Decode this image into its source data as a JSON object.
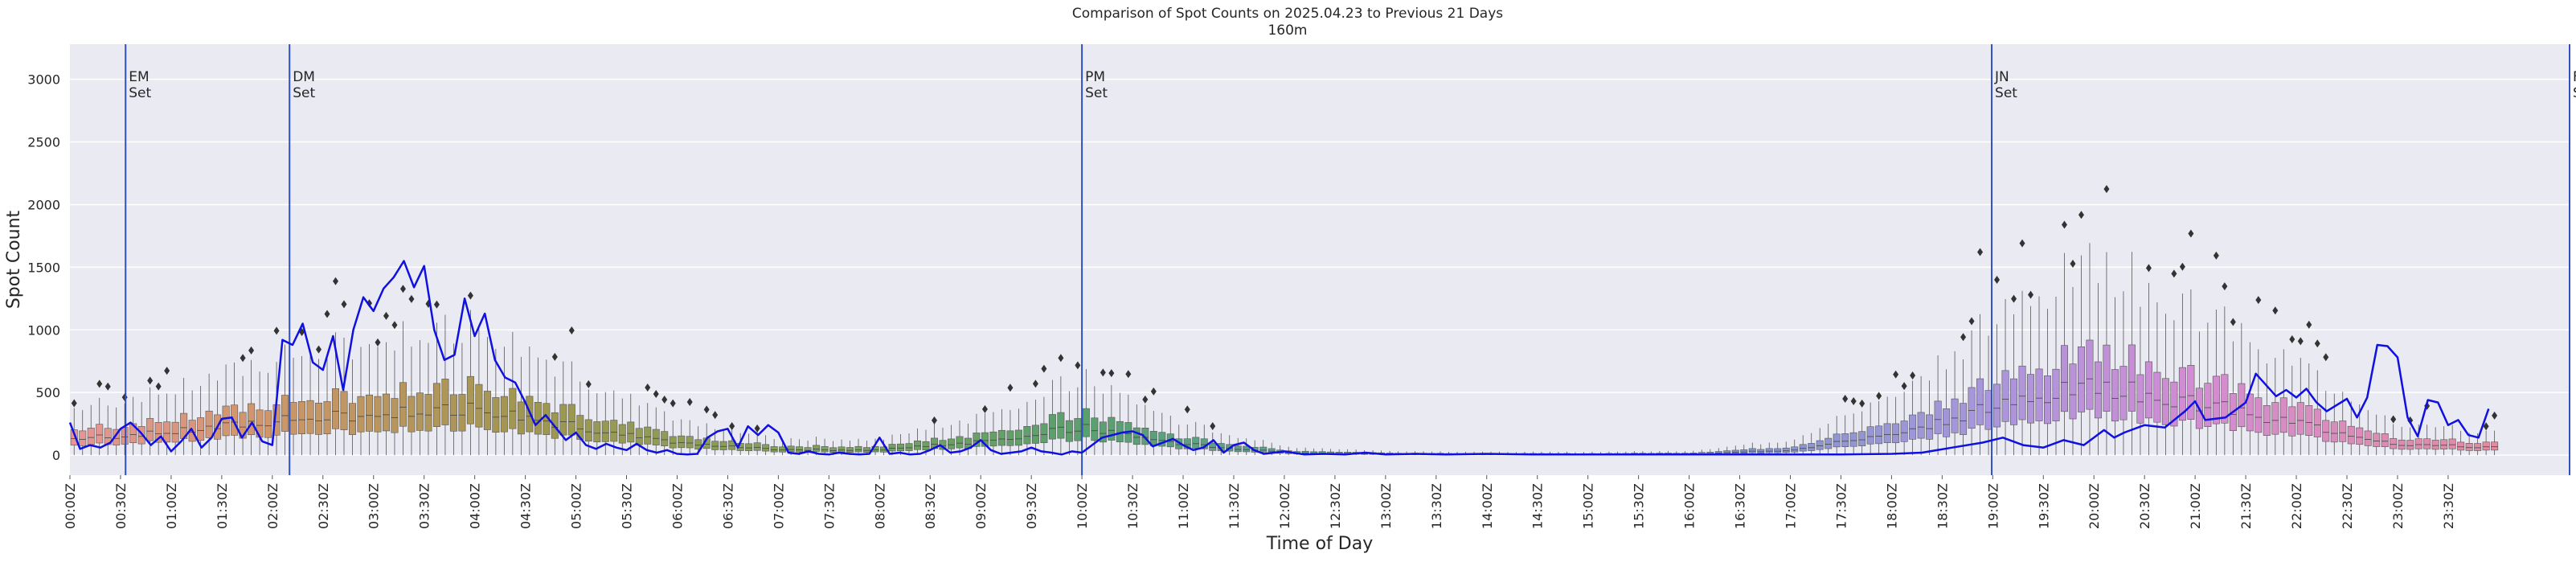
{
  "chart_data": {
    "type": "box",
    "title": "Comparison of Spot Counts on 2025.04.23 to Previous 21 Days",
    "subtitle": "160m",
    "xlabel": "Time of Day",
    "ylabel": "Spot Count",
    "ylim": [
      -160,
      3280
    ],
    "yticks": [
      0,
      500,
      1000,
      1500,
      2000,
      2500,
      3000
    ],
    "grid": true,
    "xticks": [
      "00:00Z",
      "00:30Z",
      "01:00Z",
      "01:30Z",
      "02:00Z",
      "02:30Z",
      "03:00Z",
      "03:30Z",
      "04:00Z",
      "04:30Z",
      "05:00Z",
      "05:30Z",
      "06:00Z",
      "06:30Z",
      "07:00Z",
      "07:30Z",
      "08:00Z",
      "08:30Z",
      "09:00Z",
      "09:30Z",
      "10:00Z",
      "10:30Z",
      "11:00Z",
      "11:30Z",
      "12:00Z",
      "12:30Z",
      "13:00Z",
      "13:30Z",
      "14:00Z",
      "14:30Z",
      "15:00Z",
      "15:30Z",
      "16:00Z",
      "16:30Z",
      "17:00Z",
      "17:30Z",
      "18:00Z",
      "18:30Z",
      "19:00Z",
      "19:30Z",
      "20:00Z",
      "20:30Z",
      "21:00Z",
      "21:30Z",
      "22:00Z",
      "22:30Z",
      "23:00Z",
      "23:30Z"
    ],
    "bins_per_hour": 12,
    "markers": [
      {
        "label": "EM\nSet",
        "time_hours": 0.55,
        "color": "#3050c0"
      },
      {
        "label": "DM\nSet",
        "time_hours": 2.17,
        "color": "#3050c0"
      },
      {
        "label": "PM\nSet",
        "time_hours": 10.0,
        "color": "#3050c0"
      },
      {
        "label": "JN\nSet",
        "time_hours": 18.99,
        "color": "#3050c0"
      },
      {
        "label": "FN\nSet",
        "time_hours": 24.7,
        "color": "#3050c0"
      }
    ],
    "box_medians_hourly": [
      {
        "time_hours": 0,
        "median": 130
      },
      {
        "time_hours": 1,
        "median": 180
      },
      {
        "time_hours": 2,
        "median": 270
      },
      {
        "time_hours": 3,
        "median": 330
      },
      {
        "time_hours": 4,
        "median": 380
      },
      {
        "time_hours": 5,
        "median": 230
      },
      {
        "time_hours": 6,
        "median": 90
      },
      {
        "time_hours": 7,
        "median": 45
      },
      {
        "time_hours": 8,
        "median": 40
      },
      {
        "time_hours": 9,
        "median": 110
      },
      {
        "time_hours": 10,
        "median": 220
      },
      {
        "time_hours": 11,
        "median": 90
      },
      {
        "time_hours": 12,
        "median": 20
      },
      {
        "time_hours": 13,
        "median": 8
      },
      {
        "time_hours": 14,
        "median": 5
      },
      {
        "time_hours": 15,
        "median": 5
      },
      {
        "time_hours": 16,
        "median": 8
      },
      {
        "time_hours": 17,
        "median": 40
      },
      {
        "time_hours": 18,
        "median": 170
      },
      {
        "time_hours": 19,
        "median": 380
      },
      {
        "time_hours": 20,
        "median": 560
      },
      {
        "time_hours": 21,
        "median": 420
      },
      {
        "time_hours": 22,
        "median": 260
      },
      {
        "time_hours": 23,
        "median": 90
      },
      {
        "time_hours": 24,
        "median": 60
      }
    ],
    "series": [
      {
        "name": "",
        "color": "#1010e0",
        "points": [
          [
            0.0,
            260
          ],
          [
            0.1,
            50
          ],
          [
            0.2,
            80
          ],
          [
            0.3,
            60
          ],
          [
            0.4,
            100
          ],
          [
            0.5,
            210
          ],
          [
            0.6,
            260
          ],
          [
            0.7,
            180
          ],
          [
            0.8,
            80
          ],
          [
            0.9,
            150
          ],
          [
            1.0,
            30
          ],
          [
            1.1,
            110
          ],
          [
            1.2,
            210
          ],
          [
            1.3,
            60
          ],
          [
            1.4,
            140
          ],
          [
            1.5,
            290
          ],
          [
            1.6,
            300
          ],
          [
            1.7,
            140
          ],
          [
            1.8,
            260
          ],
          [
            1.9,
            110
          ],
          [
            2.0,
            80
          ],
          [
            2.1,
            920
          ],
          [
            2.2,
            880
          ],
          [
            2.3,
            1050
          ],
          [
            2.4,
            740
          ],
          [
            2.5,
            680
          ],
          [
            2.6,
            950
          ],
          [
            2.7,
            520
          ],
          [
            2.8,
            1000
          ],
          [
            2.9,
            1260
          ],
          [
            3.0,
            1150
          ],
          [
            3.1,
            1330
          ],
          [
            3.2,
            1420
          ],
          [
            3.3,
            1550
          ],
          [
            3.4,
            1340
          ],
          [
            3.5,
            1510
          ],
          [
            3.6,
            1000
          ],
          [
            3.7,
            760
          ],
          [
            3.8,
            800
          ],
          [
            3.9,
            1250
          ],
          [
            4.0,
            950
          ],
          [
            4.1,
            1130
          ],
          [
            4.2,
            760
          ],
          [
            4.3,
            620
          ],
          [
            4.4,
            580
          ],
          [
            4.5,
            420
          ],
          [
            4.6,
            240
          ],
          [
            4.7,
            320
          ],
          [
            4.8,
            220
          ],
          [
            4.9,
            120
          ],
          [
            5.0,
            180
          ],
          [
            5.1,
            80
          ],
          [
            5.2,
            50
          ],
          [
            5.3,
            90
          ],
          [
            5.4,
            60
          ],
          [
            5.5,
            40
          ],
          [
            5.6,
            90
          ],
          [
            5.7,
            40
          ],
          [
            5.8,
            20
          ],
          [
            5.9,
            40
          ],
          [
            6.0,
            10
          ],
          [
            6.1,
            5
          ],
          [
            6.2,
            10
          ],
          [
            6.3,
            140
          ],
          [
            6.4,
            190
          ],
          [
            6.5,
            210
          ],
          [
            6.6,
            60
          ],
          [
            6.7,
            230
          ],
          [
            6.8,
            160
          ],
          [
            6.9,
            240
          ],
          [
            7.0,
            180
          ],
          [
            7.1,
            20
          ],
          [
            7.2,
            10
          ],
          [
            7.3,
            30
          ],
          [
            7.4,
            10
          ],
          [
            7.5,
            5
          ],
          [
            7.6,
            20
          ],
          [
            7.7,
            10
          ],
          [
            7.8,
            5
          ],
          [
            7.9,
            10
          ],
          [
            8.0,
            140
          ],
          [
            8.1,
            10
          ],
          [
            8.2,
            20
          ],
          [
            8.3,
            5
          ],
          [
            8.4,
            10
          ],
          [
            8.5,
            40
          ],
          [
            8.6,
            80
          ],
          [
            8.7,
            20
          ],
          [
            8.8,
            30
          ],
          [
            8.9,
            60
          ],
          [
            9.0,
            120
          ],
          [
            9.1,
            40
          ],
          [
            9.2,
            10
          ],
          [
            9.3,
            20
          ],
          [
            9.4,
            30
          ],
          [
            9.5,
            60
          ],
          [
            9.6,
            30
          ],
          [
            9.7,
            20
          ],
          [
            9.8,
            5
          ],
          [
            9.9,
            30
          ],
          [
            10.0,
            20
          ],
          [
            10.2,
            140
          ],
          [
            10.4,
            180
          ],
          [
            10.5,
            190
          ],
          [
            10.6,
            160
          ],
          [
            10.7,
            70
          ],
          [
            10.9,
            130
          ],
          [
            11.0,
            80
          ],
          [
            11.1,
            40
          ],
          [
            11.2,
            60
          ],
          [
            11.3,
            120
          ],
          [
            11.4,
            20
          ],
          [
            11.5,
            80
          ],
          [
            11.6,
            100
          ],
          [
            11.7,
            40
          ],
          [
            11.8,
            10
          ],
          [
            11.9,
            20
          ],
          [
            12.0,
            30
          ],
          [
            12.2,
            5
          ],
          [
            12.4,
            10
          ],
          [
            12.6,
            5
          ],
          [
            12.8,
            20
          ],
          [
            13.0,
            5
          ],
          [
            13.3,
            10
          ],
          [
            13.6,
            5
          ],
          [
            14.0,
            10
          ],
          [
            14.5,
            5
          ],
          [
            15.0,
            5
          ],
          [
            15.5,
            5
          ],
          [
            16.0,
            5
          ],
          [
            16.5,
            5
          ],
          [
            17.0,
            5
          ],
          [
            17.5,
            5
          ],
          [
            18.0,
            10
          ],
          [
            18.3,
            20
          ],
          [
            18.6,
            60
          ],
          [
            18.9,
            100
          ],
          [
            19.1,
            140
          ],
          [
            19.3,
            80
          ],
          [
            19.5,
            60
          ],
          [
            19.7,
            120
          ],
          [
            19.9,
            80
          ],
          [
            20.1,
            200
          ],
          [
            20.2,
            140
          ],
          [
            20.3,
            180
          ],
          [
            20.5,
            240
          ],
          [
            20.7,
            220
          ],
          [
            20.9,
            350
          ],
          [
            21.0,
            430
          ],
          [
            21.1,
            280
          ],
          [
            21.3,
            300
          ],
          [
            21.5,
            420
          ],
          [
            21.6,
            650
          ],
          [
            21.7,
            560
          ],
          [
            21.8,
            470
          ],
          [
            21.9,
            520
          ],
          [
            22.0,
            460
          ],
          [
            22.1,
            530
          ],
          [
            22.2,
            420
          ],
          [
            22.3,
            350
          ],
          [
            22.5,
            450
          ],
          [
            22.6,
            300
          ],
          [
            22.7,
            460
          ],
          [
            22.8,
            880
          ],
          [
            22.9,
            870
          ],
          [
            23.0,
            780
          ],
          [
            23.1,
            300
          ],
          [
            23.2,
            150
          ],
          [
            23.3,
            440
          ],
          [
            23.4,
            420
          ],
          [
            23.5,
            240
          ],
          [
            23.6,
            280
          ],
          [
            23.7,
            160
          ],
          [
            23.8,
            140
          ],
          [
            23.9,
            370
          ]
        ]
      }
    ]
  }
}
